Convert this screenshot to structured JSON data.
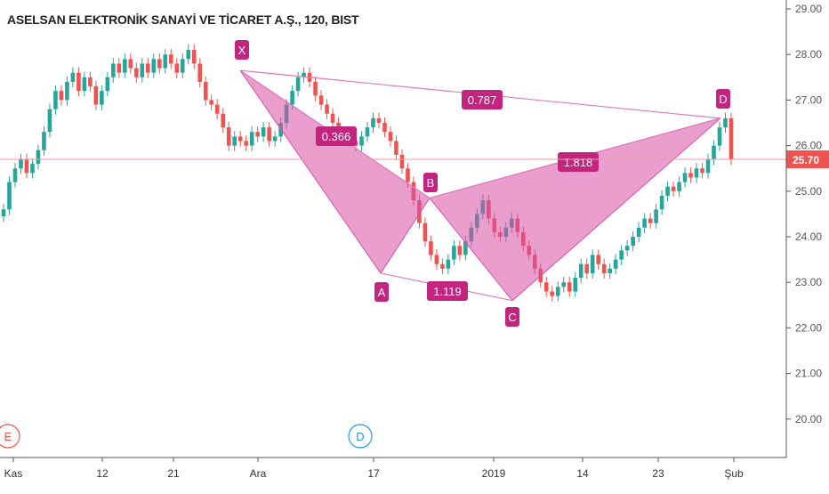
{
  "chart_data": {
    "type": "candlestick",
    "title": "ASELSAN ELEKTRONİK SANAYİ VE TİCARET A.Ş., 120, BIST",
    "y_axis": {
      "ticks": [
        "29.00",
        "28.00",
        "27.00",
        "26.00",
        "25.00",
        "24.00",
        "23.00",
        "22.00",
        "21.00",
        "20.00"
      ],
      "tick_values": [
        29,
        28,
        27,
        26,
        25,
        24,
        23,
        22,
        21,
        20
      ],
      "range": [
        19.15,
        29.25
      ],
      "position": "right"
    },
    "x_axis": {
      "ticks": [
        "Kas",
        "12",
        "21",
        "Ara",
        "17",
        "2019",
        "14",
        "23",
        "Şub"
      ]
    },
    "last_price": {
      "label": "25.70",
      "value": 25.7
    },
    "pattern": {
      "name_points": [
        "X",
        "A",
        "B",
        "C",
        "D"
      ],
      "X": 27.65,
      "A": 23.2,
      "B": 24.85,
      "C": 22.6,
      "D": 26.6,
      "ratios": [
        "0.366",
        "1.818",
        "1.119",
        "0.787"
      ]
    },
    "events": [
      {
        "label": "E",
        "type": "earnings"
      },
      {
        "label": "D",
        "type": "dividend"
      }
    ],
    "series": [
      {
        "values": [
          24.6,
          25.2,
          25.5,
          25.7,
          25.4,
          25.6,
          25.9,
          26.3,
          26.8,
          27.2,
          27.0,
          27.4,
          27.6,
          27.2,
          27.5,
          27.3,
          26.9,
          27.2,
          27.5,
          27.8,
          27.6,
          27.9,
          27.7,
          27.5,
          27.8,
          27.6,
          27.9,
          27.7,
          28.0,
          27.8,
          27.6,
          27.9,
          28.1,
          27.8,
          27.4,
          27.0,
          26.9,
          26.7,
          26.4,
          26.0,
          26.2,
          26.1,
          26.0,
          26.3,
          26.2,
          26.4,
          26.1,
          26.2,
          26.5,
          26.9,
          27.2,
          27.5,
          27.6,
          27.4,
          27.1,
          26.9,
          26.7,
          26.5,
          26.2,
          26.3,
          26.1,
          26.0,
          26.2,
          26.4,
          26.6,
          26.5,
          26.3,
          26.1,
          25.8,
          25.5,
          25.2,
          24.8,
          24.3,
          23.9,
          23.6,
          23.4,
          23.3,
          23.5,
          23.8,
          23.6,
          23.9,
          24.2,
          24.5,
          24.8,
          24.4,
          24.1,
          24.0,
          24.2,
          24.4,
          24.1,
          23.8,
          23.6,
          23.3,
          23.0,
          22.8,
          22.7,
          22.9,
          23.0,
          22.8,
          23.1,
          23.4,
          23.2,
          23.6,
          23.4,
          23.2,
          23.3,
          23.5,
          23.7,
          23.8,
          24.0,
          24.2,
          24.4,
          24.3,
          24.6,
          24.9,
          25.1,
          25.0,
          25.2,
          25.4,
          25.3,
          25.5,
          25.4,
          25.7,
          26.0,
          26.4,
          26.6,
          25.7
        ]
      }
    ]
  }
}
